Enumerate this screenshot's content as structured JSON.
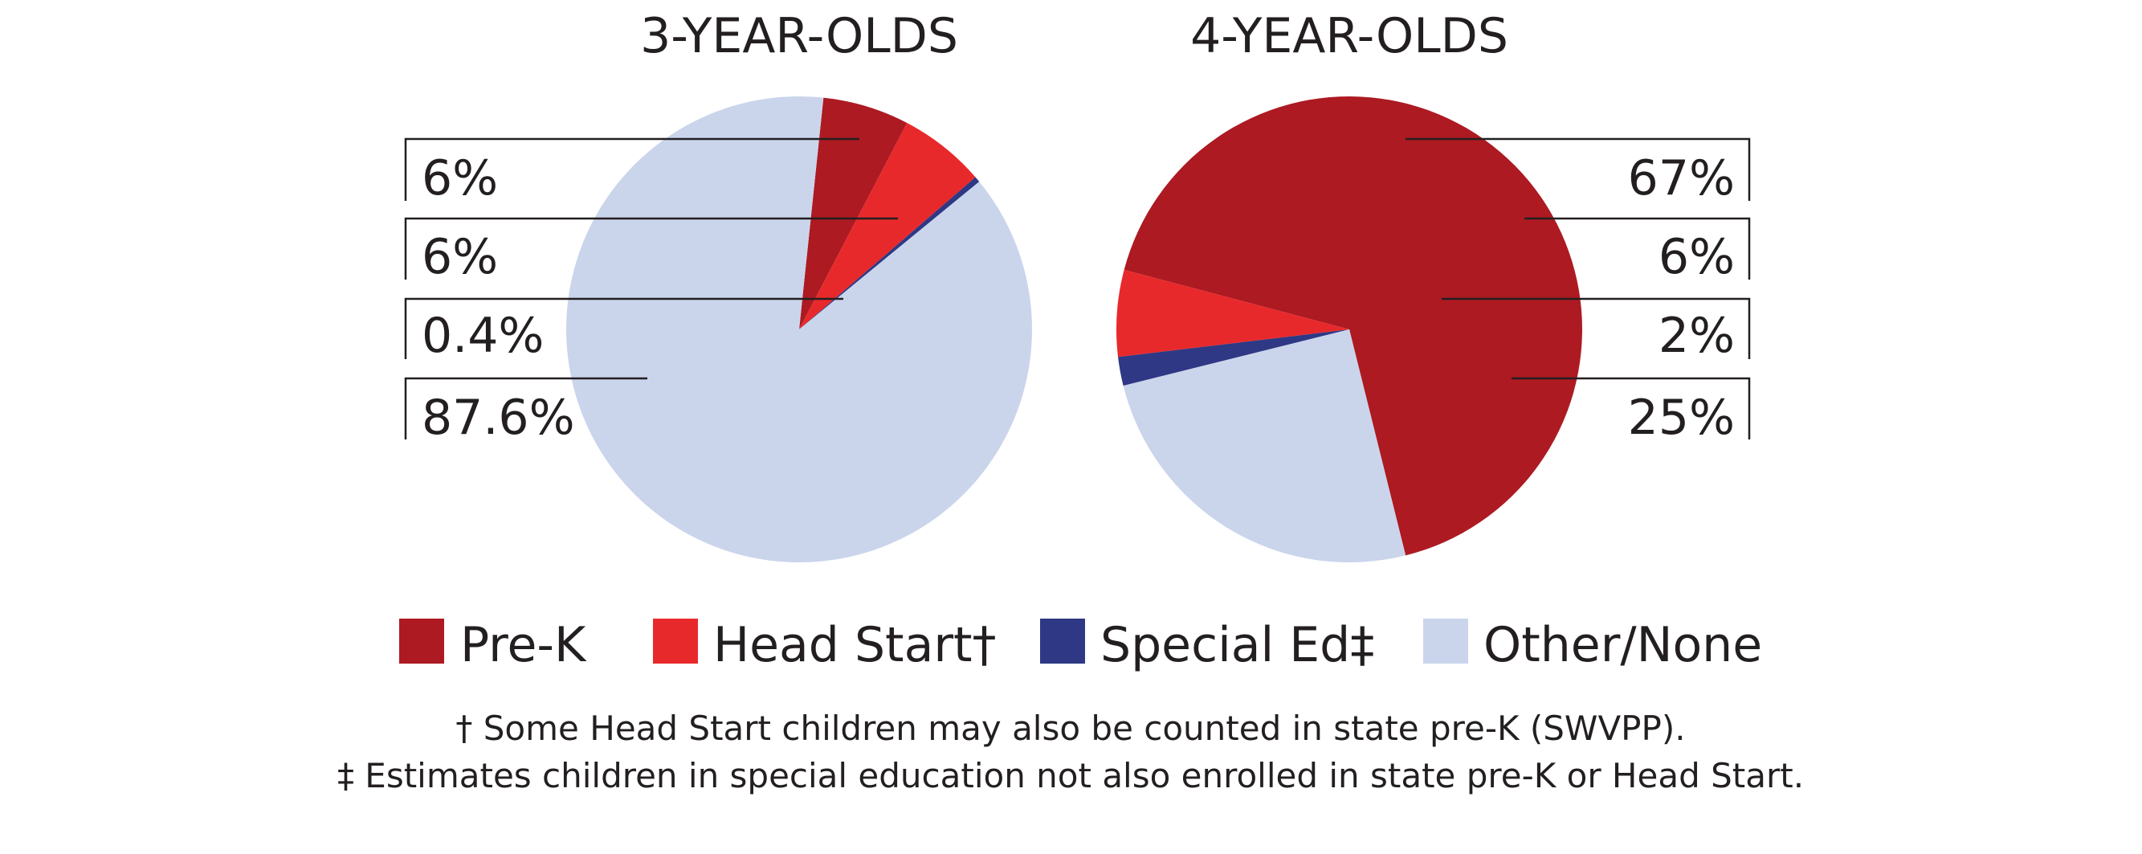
{
  "chart_data": [
    {
      "type": "pie",
      "title": "3-YEAR-OLDS",
      "categories": [
        "Pre-K",
        "Head Start†",
        "Special Ed‡",
        "Other/None"
      ],
      "values": [
        6,
        6,
        0.4,
        87.6
      ],
      "labels": [
        "6%",
        "6%",
        "0.4%",
        "87.6%"
      ],
      "colors": [
        "#ad1a22",
        "#e8292b",
        "#2e3884",
        "#cad5ec"
      ]
    },
    {
      "type": "pie",
      "title": "4-YEAR-OLDS",
      "categories": [
        "Pre-K",
        "Head Start†",
        "Special Ed‡",
        "Other/None"
      ],
      "values": [
        67,
        6,
        2,
        25
      ],
      "labels": [
        "67%",
        "6%",
        "2%",
        "25%"
      ],
      "colors": [
        "#ad1a22",
        "#e8292b",
        "#2e3884",
        "#cad5ec"
      ]
    }
  ],
  "legend": {
    "items": [
      {
        "label": "Pre-K",
        "color": "#ad1a22"
      },
      {
        "label": "Head Start†",
        "color": "#e8292b"
      },
      {
        "label": "Special Ed‡",
        "color": "#2e3884"
      },
      {
        "label": "Other/None",
        "color": "#cad5ec"
      }
    ]
  },
  "notes": {
    "line1": "† Some Head Start children may also be counted in state pre-K (SWVPP).",
    "line2": "‡ Estimates children in special education not also enrolled in state pre-K or Head Start."
  }
}
